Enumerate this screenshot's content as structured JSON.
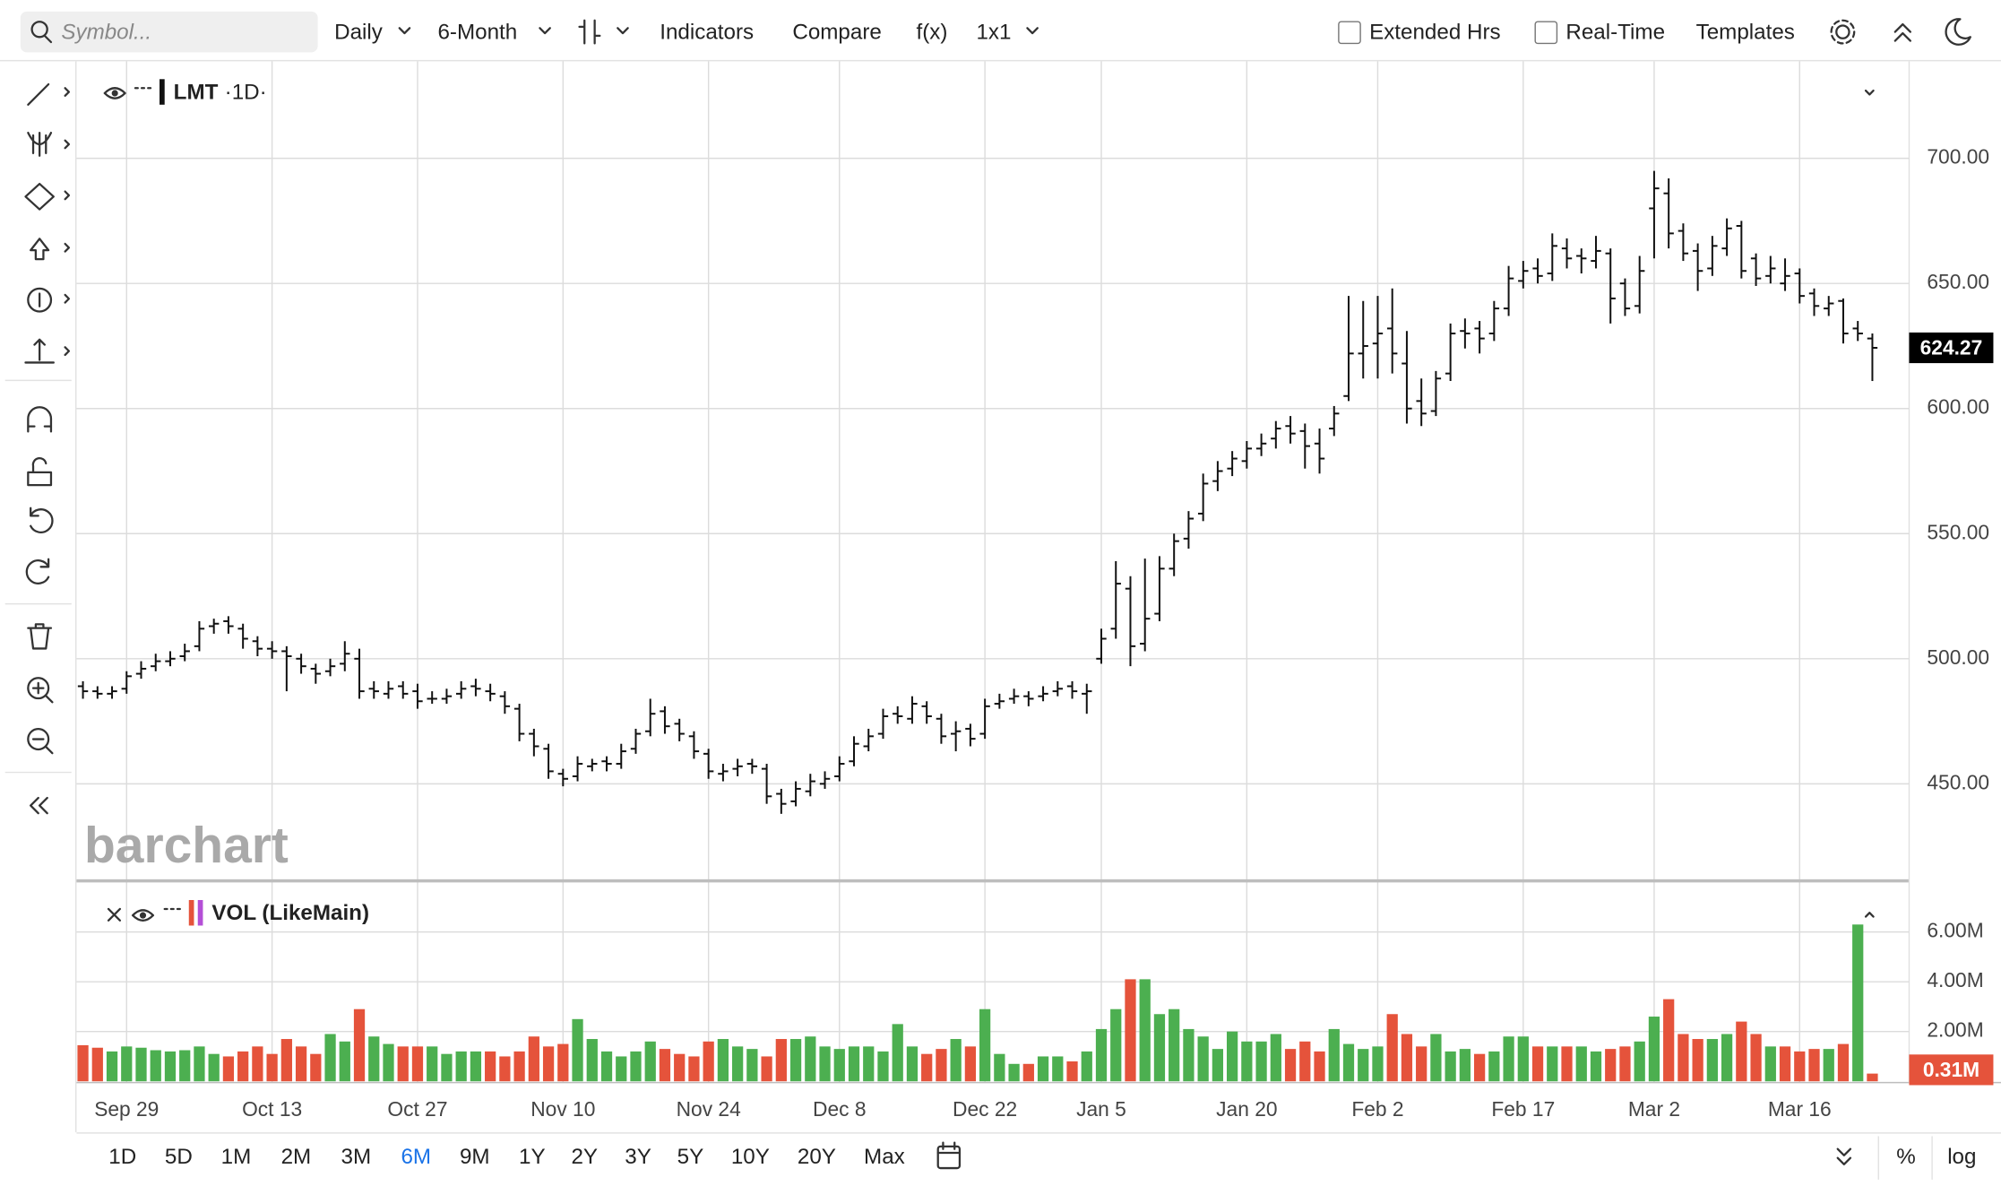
{
  "ui": {
    "search_placeholder": "Symbol...",
    "interval": "Daily",
    "range": "6-Month",
    "indicators": "Indicators",
    "compare": "Compare",
    "fx": "f(x)",
    "layout": "1x1",
    "extended_hours": "Extended Hrs",
    "real_time": "Real-Time",
    "templates": "Templates",
    "watermark": "barchart",
    "ranges": [
      "1D",
      "5D",
      "1M",
      "2M",
      "3M",
      "6M",
      "9M",
      "1Y",
      "2Y",
      "3Y",
      "5Y",
      "10Y",
      "20Y",
      "Max"
    ],
    "percent": "%",
    "log": "log"
  },
  "chart_data": [
    {
      "type": "ohlc",
      "title": "LMT",
      "subtitle": "·1D·",
      "color": "#111111",
      "grid": true,
      "open": [
        489,
        487,
        486,
        488,
        494,
        497,
        499,
        501,
        505,
        513,
        515,
        512,
        507,
        504,
        503,
        500,
        496,
        495,
        498,
        500,
        488,
        486,
        489,
        487,
        484,
        484,
        486,
        489,
        487,
        485,
        480,
        470,
        464,
        454,
        453,
        457,
        459,
        458,
        464,
        471,
        479,
        474,
        469,
        462,
        454,
        456,
        458,
        456,
        446,
        443,
        447,
        450,
        453,
        459,
        465,
        470,
        478,
        476,
        481,
        476,
        470,
        472,
        470,
        482,
        484,
        485,
        485,
        487,
        489,
        486,
        500,
        512,
        528,
        506,
        518,
        536,
        548,
        558,
        571,
        576,
        579,
        584,
        588,
        593,
        591,
        586,
        592,
        605,
        622,
        626,
        632,
        618,
        603,
        599,
        614,
        631,
        632,
        630,
        640,
        651,
        656,
        654,
        664,
        661,
        659,
        662,
        650,
        641,
        680,
        686,
        671,
        663,
        656,
        664,
        673,
        660,
        653,
        650,
        654,
        646,
        640,
        643,
        632,
        628
      ],
      "high": [
        491,
        489,
        489,
        495,
        499,
        502,
        503,
        506,
        515,
        516,
        517,
        514,
        509,
        507,
        505,
        502,
        498,
        500,
        507,
        504,
        491,
        491,
        491,
        490,
        487,
        488,
        491,
        492,
        490,
        487,
        482,
        472,
        466,
        456,
        461,
        460,
        461,
        466,
        472,
        484,
        481,
        476,
        471,
        464,
        458,
        460,
        460,
        458,
        448,
        451,
        454,
        455,
        461,
        469,
        472,
        480,
        481,
        485,
        483,
        478,
        475,
        474,
        484,
        486,
        488,
        487,
        489,
        491,
        491,
        490,
        512,
        539,
        533,
        540,
        541,
        550,
        559,
        574,
        579,
        583,
        587,
        590,
        595,
        597,
        594,
        592,
        601,
        645,
        643,
        645,
        648,
        631,
        612,
        615,
        634,
        636,
        635,
        643,
        657,
        659,
        660,
        670,
        668,
        664,
        669,
        664,
        652,
        661,
        695,
        692,
        674,
        666,
        669,
        676,
        675,
        662,
        661,
        660,
        656,
        648,
        645,
        644,
        635,
        630
      ],
      "low": [
        484,
        484,
        484,
        486,
        492,
        495,
        497,
        499,
        503,
        510,
        510,
        504,
        501,
        500,
        487,
        494,
        490,
        493,
        495,
        484,
        484,
        484,
        484,
        480,
        482,
        482,
        484,
        485,
        483,
        478,
        467,
        461,
        452,
        449,
        451,
        455,
        455,
        456,
        462,
        469,
        470,
        467,
        460,
        452,
        451,
        453,
        454,
        442,
        438,
        441,
        445,
        448,
        451,
        457,
        463,
        468,
        474,
        474,
        474,
        466,
        463,
        465,
        468,
        480,
        482,
        481,
        483,
        485,
        484,
        478,
        498,
        508,
        497,
        503,
        515,
        533,
        544,
        555,
        567,
        573,
        576,
        581,
        584,
        586,
        576,
        574,
        589,
        603,
        612,
        612,
        614,
        594,
        593,
        597,
        611,
        624,
        622,
        627,
        637,
        648,
        650,
        651,
        656,
        654,
        656,
        634,
        637,
        638,
        660,
        664,
        659,
        647,
        653,
        661,
        652,
        649,
        650,
        647,
        642,
        637,
        637,
        626,
        627,
        611
      ],
      "close": [
        487,
        486,
        487,
        493,
        496,
        499,
        500,
        503,
        512,
        514,
        513,
        508,
        504,
        503,
        501,
        497,
        494,
        497,
        502,
        487,
        487,
        488,
        486,
        483,
        484,
        485,
        488,
        488,
        486,
        481,
        470,
        465,
        455,
        452,
        458,
        458,
        458,
        463,
        470,
        478,
        473,
        470,
        463,
        455,
        455,
        457,
        457,
        445,
        442,
        448,
        451,
        452,
        458,
        466,
        469,
        477,
        477,
        482,
        477,
        469,
        471,
        468,
        481,
        483,
        485,
        484,
        486,
        488,
        487,
        487,
        508,
        530,
        505,
        516,
        536,
        547,
        556,
        570,
        575,
        580,
        584,
        586,
        592,
        590,
        585,
        580,
        598,
        622,
        625,
        630,
        622,
        600,
        598,
        612,
        630,
        630,
        628,
        640,
        652,
        655,
        653,
        665,
        660,
        660,
        663,
        644,
        640,
        655,
        688,
        670,
        662,
        655,
        665,
        672,
        655,
        652,
        656,
        653,
        645,
        641,
        642,
        630,
        630,
        624.27
      ],
      "ylim": [
        411.2,
        738.8
      ],
      "yticks": [
        {
          "value": 450,
          "label": "450.00"
        },
        {
          "value": 500,
          "label": "500.00"
        },
        {
          "value": 550,
          "label": "550.00"
        },
        {
          "value": 600,
          "label": "600.00"
        },
        {
          "value": 650,
          "label": "650.00"
        },
        {
          "value": 700,
          "label": "700.00"
        }
      ]
    },
    {
      "type": "bar",
      "title": "VOL (LikeMain)",
      "up_color": "#4caf50",
      "down_color": "#e5533b",
      "grid": true,
      "categories": [
        null,
        null,
        null,
        "Sep 29",
        null,
        null,
        null,
        null,
        null,
        null,
        null,
        null,
        null,
        "Oct 13",
        null,
        null,
        null,
        null,
        null,
        null,
        null,
        null,
        null,
        "Oct 27",
        null,
        null,
        null,
        null,
        null,
        null,
        null,
        null,
        null,
        "Nov 10",
        null,
        null,
        null,
        null,
        null,
        null,
        null,
        null,
        null,
        "Nov 24",
        null,
        null,
        null,
        null,
        null,
        null,
        null,
        null,
        "Dec 8",
        null,
        null,
        null,
        null,
        null,
        null,
        null,
        null,
        null,
        "Dec 22",
        null,
        null,
        null,
        null,
        null,
        null,
        null,
        "Jan 5",
        null,
        null,
        null,
        null,
        null,
        null,
        null,
        null,
        null,
        "Jan 20",
        null,
        null,
        null,
        null,
        null,
        null,
        null,
        null,
        "Feb 2",
        null,
        null,
        null,
        null,
        null,
        null,
        null,
        null,
        null,
        "Feb 17",
        null,
        null,
        null,
        null,
        null,
        null,
        null,
        null,
        "Mar 2",
        null,
        null,
        null,
        null,
        null,
        null,
        null,
        null,
        null,
        "Mar 16",
        null,
        null,
        null,
        null,
        null
      ],
      "values": [
        1450000,
        1350000,
        1200000,
        1400000,
        1350000,
        1250000,
        1200000,
        1250000,
        1400000,
        1100000,
        1000000,
        1200000,
        1400000,
        1100000,
        1700000,
        1400000,
        1100000,
        1900000,
        1600000,
        2900000,
        1800000,
        1500000,
        1400000,
        1400000,
        1400000,
        1100000,
        1200000,
        1200000,
        1200000,
        1000000,
        1200000,
        1800000,
        1400000,
        1500000,
        2500000,
        1700000,
        1200000,
        1000000,
        1200000,
        1600000,
        1300000,
        1100000,
        1000000,
        1600000,
        1700000,
        1400000,
        1300000,
        1000000,
        1700000,
        1700000,
        1800000,
        1400000,
        1300000,
        1400000,
        1400000,
        1200000,
        2300000,
        1400000,
        1100000,
        1300000,
        1700000,
        1400000,
        2900000,
        1100000,
        700000,
        700000,
        1000000,
        1000000,
        800000,
        1200000,
        2100000,
        2900000,
        4100000,
        4100000,
        2700000,
        2900000,
        2100000,
        1800000,
        1300000,
        2000000,
        1600000,
        1600000,
        1900000,
        1300000,
        1600000,
        1200000,
        2100000,
        1500000,
        1300000,
        1400000,
        2700000,
        1900000,
        1400000,
        1900000,
        1200000,
        1300000,
        1100000,
        1200000,
        1800000,
        1800000,
        1400000,
        1400000,
        1400000,
        1400000,
        1200000,
        1300000,
        1400000,
        1600000,
        2600000,
        3300000,
        1900000,
        1700000,
        1700000,
        1900000,
        2400000,
        1900000,
        1400000,
        1400000,
        1200000,
        1300000,
        1300000,
        1500000,
        6300000,
        310000
      ],
      "value_labels": [
        null,
        null,
        null,
        null,
        null,
        null,
        null,
        null,
        null,
        null,
        null,
        null,
        null,
        null,
        null,
        null,
        null,
        null,
        null,
        null,
        null,
        null,
        null,
        null,
        null,
        null,
        null,
        null,
        null,
        null,
        null,
        null,
        null,
        null,
        null,
        null,
        null,
        null,
        null,
        null,
        null,
        null,
        null,
        null,
        null,
        null,
        null,
        null,
        null,
        null,
        null,
        null,
        null,
        null,
        null,
        null,
        null,
        null,
        null,
        null,
        null,
        null,
        null,
        null,
        null,
        null,
        null,
        null,
        null,
        null,
        null,
        null,
        null,
        null,
        null,
        null,
        null,
        null,
        null,
        null,
        null,
        null,
        null,
        null,
        null,
        null,
        null,
        null,
        null,
        null,
        null,
        null,
        null,
        null,
        null,
        null,
        null,
        null,
        null,
        null,
        null,
        null,
        null,
        null,
        null,
        null,
        null,
        null,
        null,
        null,
        null,
        null,
        null,
        null,
        null,
        null,
        null,
        null,
        null,
        null,
        null,
        null,
        null,
        "0.31M"
      ],
      "ylim": [
        0,
        7540000
      ],
      "yticks": [
        {
          "value": 2000000,
          "label": "2.00M"
        },
        {
          "value": 4000000,
          "label": "4.00M"
        },
        {
          "value": 6000000,
          "label": "6.00M"
        }
      ]
    }
  ]
}
